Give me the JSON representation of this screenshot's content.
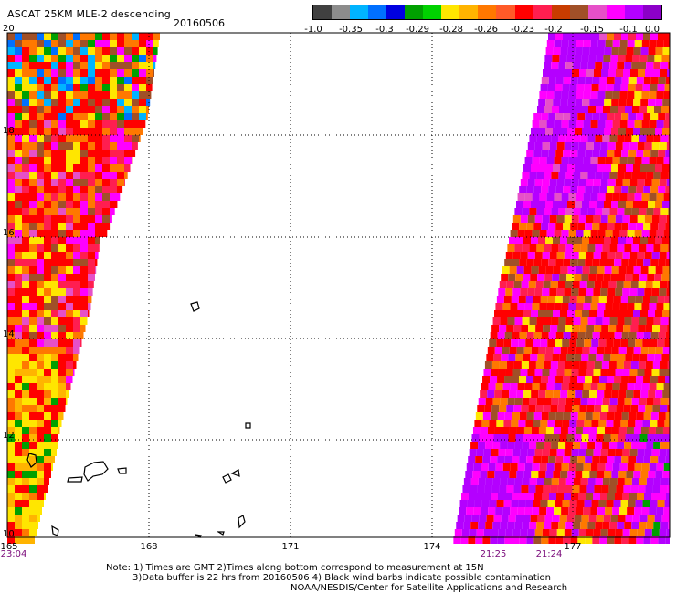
{
  "header": {
    "title": "ASCAT 25KM MLE-2 descending",
    "date": "20160506"
  },
  "colorbar": {
    "colors": [
      "#404040",
      "#8c8c8c",
      "#00b4ff",
      "#0070ff",
      "#0000e0",
      "#00a000",
      "#00d200",
      "#ffe600",
      "#ffb400",
      "#ff7800",
      "#ff5a28",
      "#ff0000",
      "#ff1e50",
      "#c83c00",
      "#a05028",
      "#e650c8",
      "#ff00ff",
      "#b400ff",
      "#8c00c8"
    ],
    "labels": [
      "-1.0",
      "-0.35",
      "-0.3",
      "-0.29",
      "-0.28",
      "-0.26",
      "-0.23",
      "-0.2",
      "-0.15",
      "-0.1",
      "0.0"
    ]
  },
  "axes": {
    "lat_labels": [
      "20",
      "18",
      "16",
      "14",
      "12",
      "10"
    ],
    "lon_labels": [
      "165",
      "168",
      "171",
      "174",
      "177"
    ]
  },
  "pass_times": [
    "23:04",
    "21:25",
    "21:24"
  ],
  "notes": {
    "line1": "Note: 1) Times are GMT 2)Times along bottom correspond to measurement at 15N",
    "line2": "3)Data buffer is 22 hrs from 20160506 4) Black wind barbs indicate possible contamination",
    "line3": "NOAA/NESDIS/Center for Satellite Applications and Research"
  }
}
